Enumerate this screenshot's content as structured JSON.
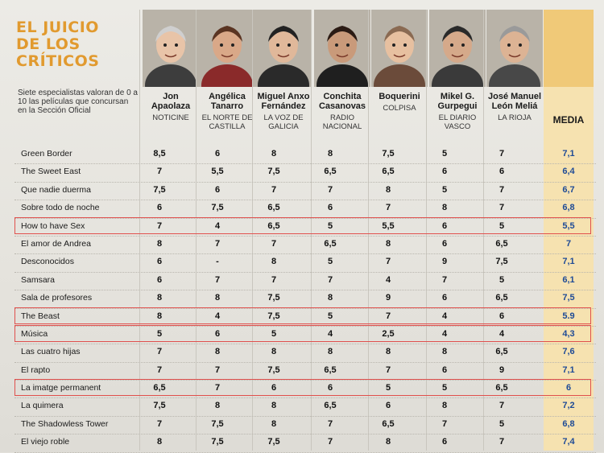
{
  "title_lines": [
    "EL JUICIO",
    "DE LOS",
    "CRÍTICOS"
  ],
  "subtitle": "Siete especialistas valoran de 0 a 10 las películas que concursan en la Sección Oficial",
  "media_label": "MEDIA",
  "critics": [
    {
      "name_lines": [
        "Jon",
        "Apaolaza"
      ],
      "outlet": "NOTICINE"
    },
    {
      "name_lines": [
        "Angélica",
        "Tanarro"
      ],
      "outlet": "EL NORTE DE CASTILLA"
    },
    {
      "name_lines": [
        "Miguel Anxo",
        "Fernández"
      ],
      "outlet": "LA VOZ DE GALICIA"
    },
    {
      "name_lines": [
        "Conchita",
        "Casanovas"
      ],
      "outlet": "RADIO NACIONAL"
    },
    {
      "name_lines": [
        "Boquerini"
      ],
      "outlet": "COLPISA"
    },
    {
      "name_lines": [
        "Mikel G.",
        "Gurpegui"
      ],
      "outlet": "EL DIARIO VASCO"
    },
    {
      "name_lines": [
        "José Manuel",
        "León Meliá"
      ],
      "outlet": "LA RIOJA"
    }
  ],
  "films": [
    {
      "title": "Green Border",
      "scores": [
        "8,5",
        "6",
        "8",
        "8",
        "7,5",
        "5",
        "7"
      ],
      "media": "7,1",
      "highlighted": false
    },
    {
      "title": "The Sweet East",
      "scores": [
        "7",
        "5,5",
        "7,5",
        "6,5",
        "6,5",
        "6",
        "6"
      ],
      "media": "6,4",
      "highlighted": false
    },
    {
      "title": "Que nadie duerma",
      "scores": [
        "7,5",
        "6",
        "7",
        "7",
        "8",
        "5",
        "7"
      ],
      "media": "6,7",
      "highlighted": false
    },
    {
      "title": "Sobre todo de noche",
      "scores": [
        "6",
        "7,5",
        "6,5",
        "6",
        "7",
        "8",
        "7"
      ],
      "media": "6,8",
      "highlighted": false
    },
    {
      "title": "How to have Sex",
      "scores": [
        "7",
        "4",
        "6,5",
        "5",
        "5,5",
        "6",
        "5"
      ],
      "media": "5,5",
      "highlighted": true
    },
    {
      "title": "El amor de Andrea",
      "scores": [
        "8",
        "7",
        "7",
        "6,5",
        "8",
        "6",
        "6,5"
      ],
      "media": "7",
      "highlighted": false
    },
    {
      "title": "Desconocidos",
      "scores": [
        "6",
        "-",
        "8",
        "5",
        "7",
        "9",
        "7,5"
      ],
      "media": "7,1",
      "highlighted": false
    },
    {
      "title": "Samsara",
      "scores": [
        "6",
        "7",
        "7",
        "7",
        "4",
        "7",
        "5"
      ],
      "media": "6,1",
      "highlighted": false
    },
    {
      "title": "Sala de profesores",
      "scores": [
        "8",
        "8",
        "7,5",
        "8",
        "9",
        "6",
        "6,5"
      ],
      "media": "7,5",
      "highlighted": false
    },
    {
      "title": "The Beast",
      "scores": [
        "8",
        "4",
        "7,5",
        "5",
        "7",
        "4",
        "6"
      ],
      "media": "5.9",
      "highlighted": true
    },
    {
      "title": "Música",
      "scores": [
        "5",
        "6",
        "5",
        "4",
        "2,5",
        "4",
        "4"
      ],
      "media": "4,3",
      "highlighted": true
    },
    {
      "title": "Las cuatro hijas",
      "scores": [
        "7",
        "8",
        "8",
        "8",
        "8",
        "8",
        "6,5"
      ],
      "media": "7,6",
      "highlighted": false
    },
    {
      "title": "El rapto",
      "scores": [
        "7",
        "7",
        "7,5",
        "6,5",
        "7",
        "6",
        "9"
      ],
      "media": "7,1",
      "highlighted": false
    },
    {
      "title": "La imatge permanent",
      "scores": [
        "6,5",
        "7",
        "6",
        "6",
        "5",
        "5",
        "6,5"
      ],
      "media": "6",
      "highlighted": true
    },
    {
      "title": "La quimera",
      "scores": [
        "7,5",
        "8",
        "8",
        "6,5",
        "6",
        "8",
        "7"
      ],
      "media": "7,2",
      "highlighted": false
    },
    {
      "title": "The Shadowless Tower",
      "scores": [
        "7",
        "7,5",
        "8",
        "7",
        "6,5",
        "7",
        "5"
      ],
      "media": "6,8",
      "highlighted": false
    },
    {
      "title": "El viejo roble",
      "scores": [
        "8",
        "7,5",
        "7,5",
        "7",
        "8",
        "6",
        "7"
      ],
      "media": "7,4",
      "highlighted": false
    }
  ],
  "colors": {
    "title": "#e19a2f",
    "media_text": "#1f4b96",
    "highlight_border": "#e0504d",
    "media_bg": "#f6e2b0"
  }
}
